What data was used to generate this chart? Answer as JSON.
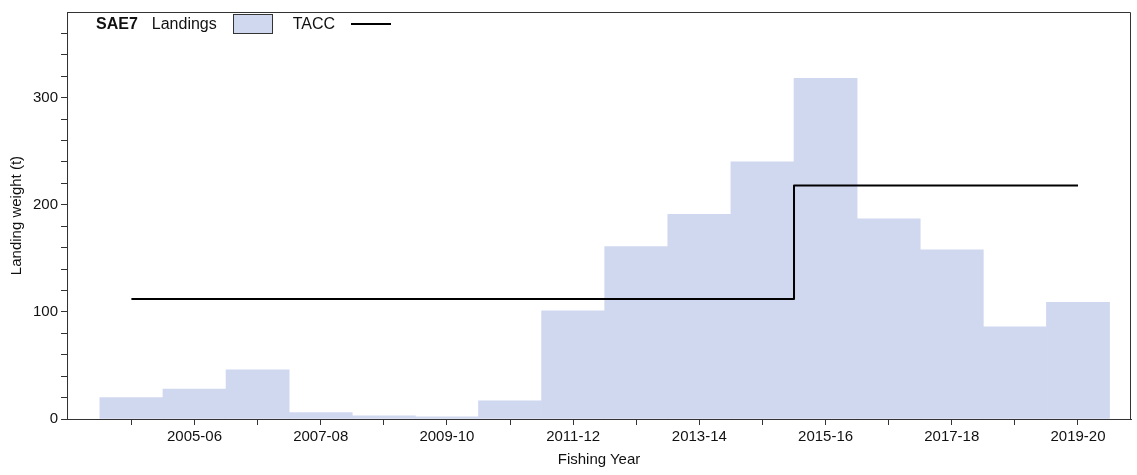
{
  "chart_data": {
    "type": "step",
    "title": "SAE7",
    "xlabel": "Fishing Year",
    "ylabel": "Landing weight (t)",
    "categories": [
      null,
      "2005-06",
      null,
      "2007-08",
      null,
      "2009-10",
      null,
      "2011-12",
      null,
      "2013-14",
      null,
      "2015-16",
      null,
      "2017-18",
      null,
      "2019-20"
    ],
    "series": [
      {
        "name": "Landings",
        "type": "bar",
        "color": "#d0d8f0",
        "values": [
          20,
          28,
          46,
          6,
          3,
          2,
          17,
          101,
          161,
          191,
          240,
          318,
          187,
          158,
          86,
          109
        ]
      },
      {
        "name": "TACC",
        "color": "#000000",
        "values": [
          112,
          112,
          112,
          112,
          112,
          112,
          112,
          112,
          112,
          112,
          112,
          218,
          218,
          218,
          218,
          218
        ]
      }
    ],
    "ylim": [
      0,
      380
    ],
    "yticks": [
      0,
      {
        "value": 20,
        "label": null
      },
      {
        "value": 40,
        "label": null
      },
      {
        "value": 60,
        "label": null
      },
      {
        "value": 80,
        "label": null
      },
      100,
      {
        "value": 120,
        "label": null
      },
      {
        "value": 140,
        "label": null
      },
      {
        "value": 160,
        "label": null
      },
      {
        "value": 180,
        "label": null
      },
      200,
      {
        "value": 220,
        "label": null
      },
      {
        "value": 240,
        "label": null
      },
      {
        "value": 260,
        "label": null
      },
      {
        "value": 280,
        "label": null
      },
      300,
      {
        "value": 320,
        "label": null
      },
      {
        "value": 340,
        "label": null
      },
      {
        "value": 360,
        "label": null
      }
    ],
    "grid": false,
    "legend": "top left"
  }
}
